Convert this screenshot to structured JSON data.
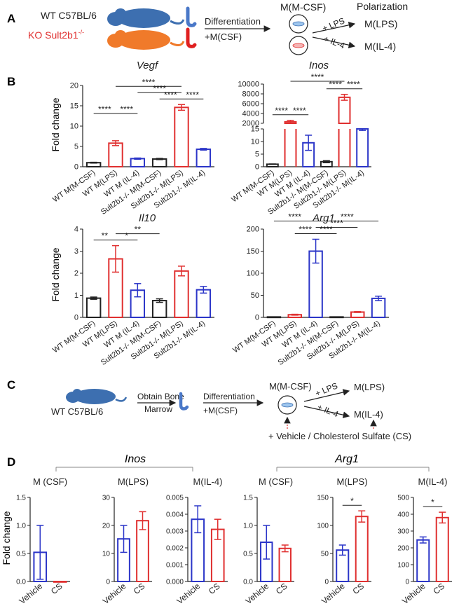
{
  "colors": {
    "black": "#222222",
    "red": "#e03030",
    "blue": "#2b35c8",
    "mouse_blue": "#3d6fb0",
    "mouse_orange": "#f07a2a",
    "bone_red": "#e02020",
    "bone_blue": "#4a78c8",
    "wt_text": "#222222",
    "ko_text": "#e03030"
  },
  "panelA": {
    "label": "A",
    "wt": "WT C57BL/6",
    "ko": "KO Sult2b1",
    "ko_sup": "-/-",
    "arrow_top": "Differentiation",
    "arrow_bottom": "+M(CSF)",
    "mcsf": "M(M-CSF)",
    "polarization": "Polarization",
    "lps_arrow": "+ LPS",
    "il4_arrow": "+ IL-4",
    "mlps": "M(LPS)",
    "mil4": "M(IL-4)"
  },
  "panelB": {
    "label": "B",
    "ylabel": "Fold change"
  },
  "panelC": {
    "label": "C",
    "wt": "WT C57BL/6",
    "obtain_top": "Obtain Bone",
    "obtain_bottom": "Marrow",
    "arrow_top": "Differentiation",
    "arrow_bottom": "+M(CSF)",
    "mcsf": "M(M-CSF)",
    "lps_arrow": "+ LPS",
    "il4_arrow": "+ IL-4",
    "mlps": "M(LPS)",
    "mil4": "M(IL-4)",
    "treatment": "+ Vehicle / Cholesterol Sulfate (CS)"
  },
  "panelD": {
    "label": "D",
    "group1": "Inos",
    "group2": "Arg1",
    "ylabel": "Fold change"
  },
  "chart_data": [
    {
      "type": "bar",
      "title": "Vegf",
      "ylabel": "Fold change",
      "categories": [
        "WT M(M-CSF)",
        "WT M(LPS)",
        "WT M (IL-4)",
        "Sult2b1-/- M(M-CSF)",
        "Sult2b1-/- M(LPS)",
        "Sult2b1-/- M(IL-4)"
      ],
      "values": [
        1.0,
        5.8,
        2.0,
        1.9,
        14.6,
        4.3
      ],
      "errors": [
        0.1,
        0.6,
        0.15,
        0.15,
        0.7,
        0.2
      ],
      "ylim": [
        0,
        20
      ],
      "yticks": [
        0,
        5,
        10,
        15,
        20
      ],
      "bar_colors": [
        "black",
        "red",
        "blue",
        "black",
        "red",
        "blue"
      ],
      "significance": [
        {
          "from": 1,
          "to": 2,
          "label": "****",
          "level": 0
        },
        {
          "from": 0,
          "to": 1,
          "label": "****",
          "level": 0
        },
        {
          "from": 4,
          "to": 5,
          "label": "****",
          "level": 0
        },
        {
          "from": 3,
          "to": 4,
          "label": "****",
          "level": 0
        },
        {
          "from": 2,
          "to": 4,
          "label": "****",
          "level": 1
        },
        {
          "from": 1,
          "to": 4,
          "label": "****",
          "level": 2
        }
      ]
    },
    {
      "type": "bar",
      "title": "Inos",
      "ylabel": "",
      "categories": [
        "WT M(M-CSF)",
        "WT M(LPS)",
        "WT M (IL-4)",
        "Sult2b1-/- M(M-CSF)",
        "Sult2b1-/- M(LPS)",
        "Sult2b1-/- M(IL-4)"
      ],
      "values": [
        1.0,
        2300,
        9.5,
        2.0,
        7300,
        15
      ],
      "errors": [
        0.1,
        300,
        3.0,
        0.4,
        600,
        0.6
      ],
      "axis_break": {
        "lower": [
          0,
          15
        ],
        "upper": [
          2000,
          10000
        ]
      },
      "yticks_lower": [
        0,
        5,
        10,
        15
      ],
      "yticks_upper": [
        2000,
        4000,
        6000,
        8000,
        10000
      ],
      "bar_colors": [
        "black",
        "red",
        "blue",
        "black",
        "red",
        "blue"
      ],
      "significance": [
        {
          "from": 0,
          "to": 1,
          "label": "****",
          "level": 0
        },
        {
          "from": 1,
          "to": 2,
          "label": "****",
          "level": 0
        },
        {
          "from": 3,
          "to": 4,
          "label": "****",
          "level": 0
        },
        {
          "from": 4,
          "to": 5,
          "label": "****",
          "level": 0
        },
        {
          "from": 1,
          "to": 4,
          "label": "****",
          "level": 1
        }
      ]
    },
    {
      "type": "bar",
      "title": "Il10",
      "ylabel": "Fold change",
      "categories": [
        "WT M(M-CSF)",
        "WT M(LPS)",
        "WT M (IL-4)",
        "Sult2b1-/- M(M-CSF)",
        "Sult2b1-/- M(LPS)",
        "Sult2b1-/- M(IL-4)"
      ],
      "values": [
        0.87,
        2.65,
        1.23,
        0.76,
        2.1,
        1.25
      ],
      "errors": [
        0.05,
        0.6,
        0.3,
        0.08,
        0.22,
        0.15
      ],
      "ylim": [
        0,
        4
      ],
      "yticks": [
        0,
        1,
        2,
        3,
        4
      ],
      "bar_colors": [
        "black",
        "red",
        "blue",
        "black",
        "red",
        "blue"
      ],
      "significance": [
        {
          "from": 0,
          "to": 1,
          "label": "**",
          "level": 0
        },
        {
          "from": 1,
          "to": 2,
          "label": "*",
          "level": 0
        },
        {
          "from": 1,
          "to": 3,
          "label": "**",
          "level": 1
        }
      ]
    },
    {
      "type": "bar",
      "title": "Arg1",
      "ylabel": "",
      "categories": [
        "WT M(M-CSF)",
        "WT M(LPS)",
        "WT M (IL-4)",
        "Sult2b1-/- M(M-CSF)",
        "Sult2b1-/- M(LPS)",
        "Sult2b1-/- M(IL-4)"
      ],
      "values": [
        1.0,
        6.0,
        150,
        1.0,
        12,
        43
      ],
      "errors": [
        0.1,
        1.0,
        27,
        0.1,
        1.0,
        5
      ],
      "ylim": [
        0,
        200
      ],
      "yticks": [
        0,
        50,
        100,
        150,
        200
      ],
      "bar_colors": [
        "black",
        "red",
        "blue",
        "black",
        "red",
        "blue"
      ],
      "significance": [
        {
          "from": 1,
          "to": 2,
          "label": "****",
          "level": 0
        },
        {
          "from": 2,
          "to": 3,
          "label": "****",
          "level": 0
        },
        {
          "from": 2,
          "to": 4,
          "label": "****",
          "level": 1
        },
        {
          "from": 0,
          "to": 2,
          "label": "****",
          "level": 2
        },
        {
          "from": 2,
          "to": 5,
          "label": "****",
          "level": 2
        }
      ]
    },
    {
      "type": "bar",
      "title": "M (CSF)",
      "group": "Inos",
      "categories": [
        "Vehicle",
        "CS"
      ],
      "values": [
        0.52,
        0.0
      ],
      "errors": [
        0.48,
        0.0
      ],
      "ylim": [
        0,
        1.5
      ],
      "yticks": [
        0,
        0.5,
        1.0,
        1.5
      ],
      "tick_labels": [
        "0.0",
        "0.5",
        "1.0",
        "1.5"
      ],
      "bar_colors": [
        "blue",
        "red"
      ],
      "significance": []
    },
    {
      "type": "bar",
      "title": "M(LPS)",
      "group": "Inos",
      "categories": [
        "Vehicle",
        "CS"
      ],
      "values": [
        15.2,
        21.7
      ],
      "errors": [
        4.8,
        3.2
      ],
      "ylim": [
        0,
        30
      ],
      "yticks": [
        0,
        10,
        20,
        30
      ],
      "tick_labels": [
        "0",
        "10",
        "20",
        "30"
      ],
      "bar_colors": [
        "blue",
        "red"
      ],
      "significance": []
    },
    {
      "type": "bar",
      "title": "M(IL-4)",
      "group": "Inos",
      "categories": [
        "Vehicle",
        "CS"
      ],
      "values": [
        0.0037,
        0.0031
      ],
      "errors": [
        0.0008,
        0.0006
      ],
      "ylim": [
        0,
        0.005
      ],
      "yticks": [
        0,
        0.001,
        0.002,
        0.003,
        0.004,
        0.005
      ],
      "tick_labels": [
        "0.000",
        "0.001",
        "0.002",
        "0.003",
        "0.004",
        "0.005"
      ],
      "bar_colors": [
        "blue",
        "red"
      ],
      "significance": []
    },
    {
      "type": "bar",
      "title": "M (CSF)",
      "group": "Arg1",
      "categories": [
        "Vehicle",
        "CS"
      ],
      "values": [
        0.7,
        0.59
      ],
      "errors": [
        0.3,
        0.06
      ],
      "ylim": [
        0,
        1.5
      ],
      "yticks": [
        0,
        0.5,
        1.0,
        1.5
      ],
      "tick_labels": [
        "0.0",
        "0.5",
        "1.0",
        "1.5"
      ],
      "bar_colors": [
        "blue",
        "red"
      ],
      "significance": []
    },
    {
      "type": "bar",
      "title": "M(LPS)",
      "group": "Arg1",
      "categories": [
        "Vehicle",
        "CS"
      ],
      "values": [
        56,
        116
      ],
      "errors": [
        9,
        10
      ],
      "ylim": [
        0,
        150
      ],
      "yticks": [
        0,
        50,
        100,
        150
      ],
      "tick_labels": [
        "0",
        "50",
        "100",
        "150"
      ],
      "bar_colors": [
        "blue",
        "red"
      ],
      "significance": [
        {
          "from": 0,
          "to": 1,
          "label": "*",
          "level": 0
        }
      ]
    },
    {
      "type": "bar",
      "title": "M(IL-4)",
      "group": "Arg1",
      "categories": [
        "Vehicle",
        "CS"
      ],
      "values": [
        247,
        380
      ],
      "errors": [
        18,
        32
      ],
      "ylim": [
        0,
        500
      ],
      "yticks": [
        0,
        100,
        200,
        300,
        400,
        500
      ],
      "tick_labels": [
        "0",
        "100",
        "200",
        "300",
        "400",
        "500"
      ],
      "bar_colors": [
        "blue",
        "red"
      ],
      "significance": [
        {
          "from": 0,
          "to": 1,
          "label": "*",
          "level": 0
        }
      ]
    }
  ]
}
